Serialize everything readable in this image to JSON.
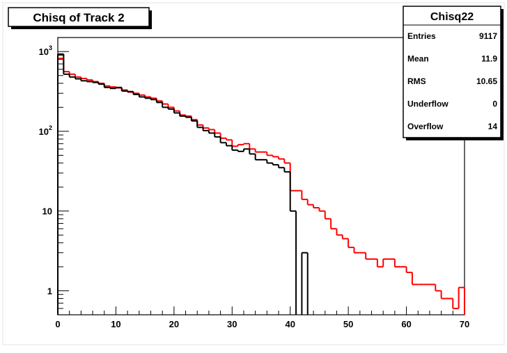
{
  "chart_data": {
    "type": "histogram",
    "title": "Chisq of Track 2",
    "xlabel": "",
    "ylabel": "",
    "x_range": [
      0,
      70
    ],
    "y_scale": "log",
    "y_range": [
      0.5,
      1500
    ],
    "grid": false,
    "x_ticks": [
      "0",
      "10",
      "20",
      "30",
      "40",
      "50",
      "60",
      "70"
    ],
    "y_ticks": [
      {
        "value": 1000,
        "base": "10",
        "exp": "3"
      },
      {
        "value": 100,
        "base": "10",
        "exp": "2"
      },
      {
        "value": 10,
        "label": "10"
      },
      {
        "value": 1,
        "label": "1"
      }
    ],
    "bin_width": 1,
    "series": [
      {
        "color": "#ff0000",
        "values": [
          820,
          560,
          520,
          480,
          460,
          440,
          420,
          400,
          370,
          360,
          350,
          330,
          310,
          300,
          285,
          270,
          260,
          240,
          220,
          200,
          180,
          160,
          155,
          140,
          120,
          110,
          105,
          95,
          82,
          78,
          65,
          68,
          70,
          60,
          55,
          55,
          50,
          48,
          45,
          40,
          18,
          18,
          14,
          12,
          11,
          10,
          8,
          6,
          5,
          4.5,
          3.5,
          3,
          3,
          2.5,
          2.5,
          2,
          2.5,
          2.5,
          2,
          2,
          1.7,
          1.2,
          1.2,
          1.2,
          1.2,
          1,
          0.8,
          0.8,
          0.6,
          1.1
        ]
      },
      {
        "color": "#000000",
        "values": [
          930,
          520,
          480,
          455,
          430,
          420,
          410,
          390,
          355,
          345,
          355,
          320,
          315,
          290,
          270,
          260,
          250,
          230,
          200,
          190,
          170,
          155,
          150,
          135,
          112,
          102,
          95,
          85,
          72,
          66,
          58,
          56,
          60,
          52,
          44,
          44,
          40,
          38,
          35,
          31,
          10,
          0,
          3,
          0,
          0,
          0,
          0,
          0,
          0,
          0,
          0,
          0,
          0,
          0,
          0,
          0,
          0,
          0,
          0,
          0,
          0,
          0,
          0,
          0,
          0,
          0,
          0,
          0,
          0,
          0
        ]
      }
    ],
    "stats_box": {
      "title": "Chisq22",
      "rows": [
        {
          "label": "Entries",
          "value": "9117"
        },
        {
          "label": "Mean",
          "value": "11.9"
        },
        {
          "label": "RMS",
          "value": "10.65"
        },
        {
          "label": "Underflow",
          "value": "0"
        },
        {
          "label": "Overflow",
          "value": "14"
        }
      ]
    },
    "colors": {
      "background": "#ffffff",
      "frame": "#000000",
      "title_box": "#ffffff"
    }
  }
}
